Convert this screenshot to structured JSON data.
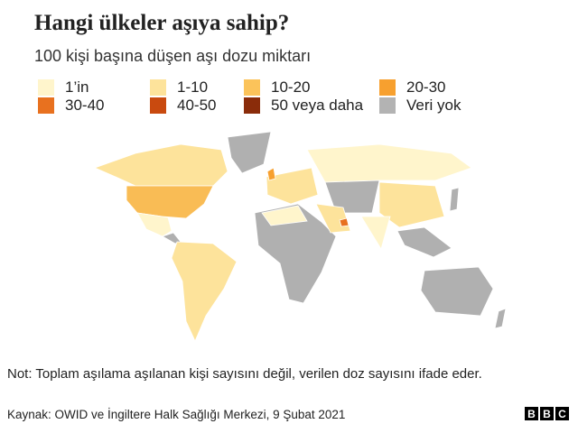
{
  "title": "Hangi ülkeler aşıya sahip?",
  "subtitle": "100 kişi başına düşen aşı dozu miktarı",
  "legend": [
    {
      "label": "1’in",
      "color": "#fff5cc"
    },
    {
      "label": "1-10",
      "color": "#fde39b"
    },
    {
      "label": "10-20",
      "color": "#fbc35a"
    },
    {
      "label": "20-30",
      "color": "#f7a02f"
    },
    {
      "label": "30-40",
      "color": "#e8711f"
    },
    {
      "label": "40-50",
      "color": "#c94a0f"
    },
    {
      "label": "50 veya daha",
      "color": "#8a2c0a"
    },
    {
      "label": "Veri yok",
      "color": "#b3b3b3"
    }
  ],
  "note": "Not: Toplam aşılama aşılanan kişi sayısını değil, verilen doz sayısını ifade eder.",
  "source": "Kaynak: OWID ve İngiltere Halk Sağlığı Merkezi, 9 Şubat 2021",
  "logo": [
    "B",
    "B",
    "C"
  ]
}
